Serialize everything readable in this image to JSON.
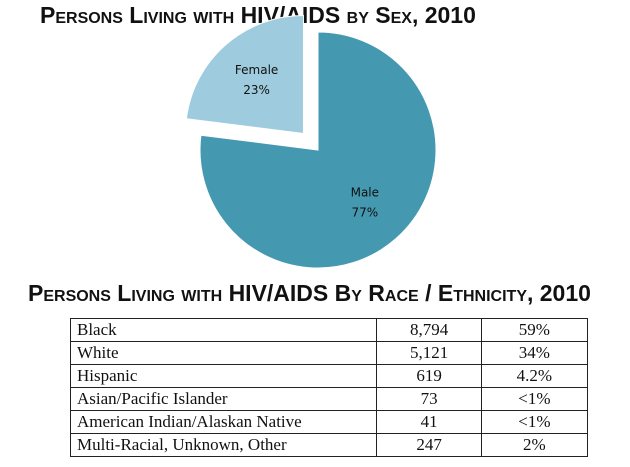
{
  "chart_data": {
    "type": "pie",
    "title": "Persons Living with HIV/AIDS by Sex, 2010",
    "categories": [
      "Male",
      "Female"
    ],
    "values": [
      77,
      23
    ],
    "value_labels": [
      "77%",
      "23%"
    ],
    "colors": [
      "#4499b0",
      "#9ecbdd"
    ],
    "exploded": [
      false,
      true
    ]
  },
  "table": {
    "title": "Persons Living with HIV/AIDS By Race / Ethnicity, 2010",
    "rows": [
      [
        "Black",
        "8,794",
        "59%"
      ],
      [
        "White",
        "5,121",
        "34%"
      ],
      [
        "Hispanic",
        "619",
        "4.2%"
      ],
      [
        "Asian/Pacific Islander",
        "73",
        "<1%"
      ],
      [
        "American Indian/Alaskan Native",
        "41",
        "<1%"
      ],
      [
        "Multi-Racial, Unknown, Other",
        "247",
        "2%"
      ]
    ]
  }
}
